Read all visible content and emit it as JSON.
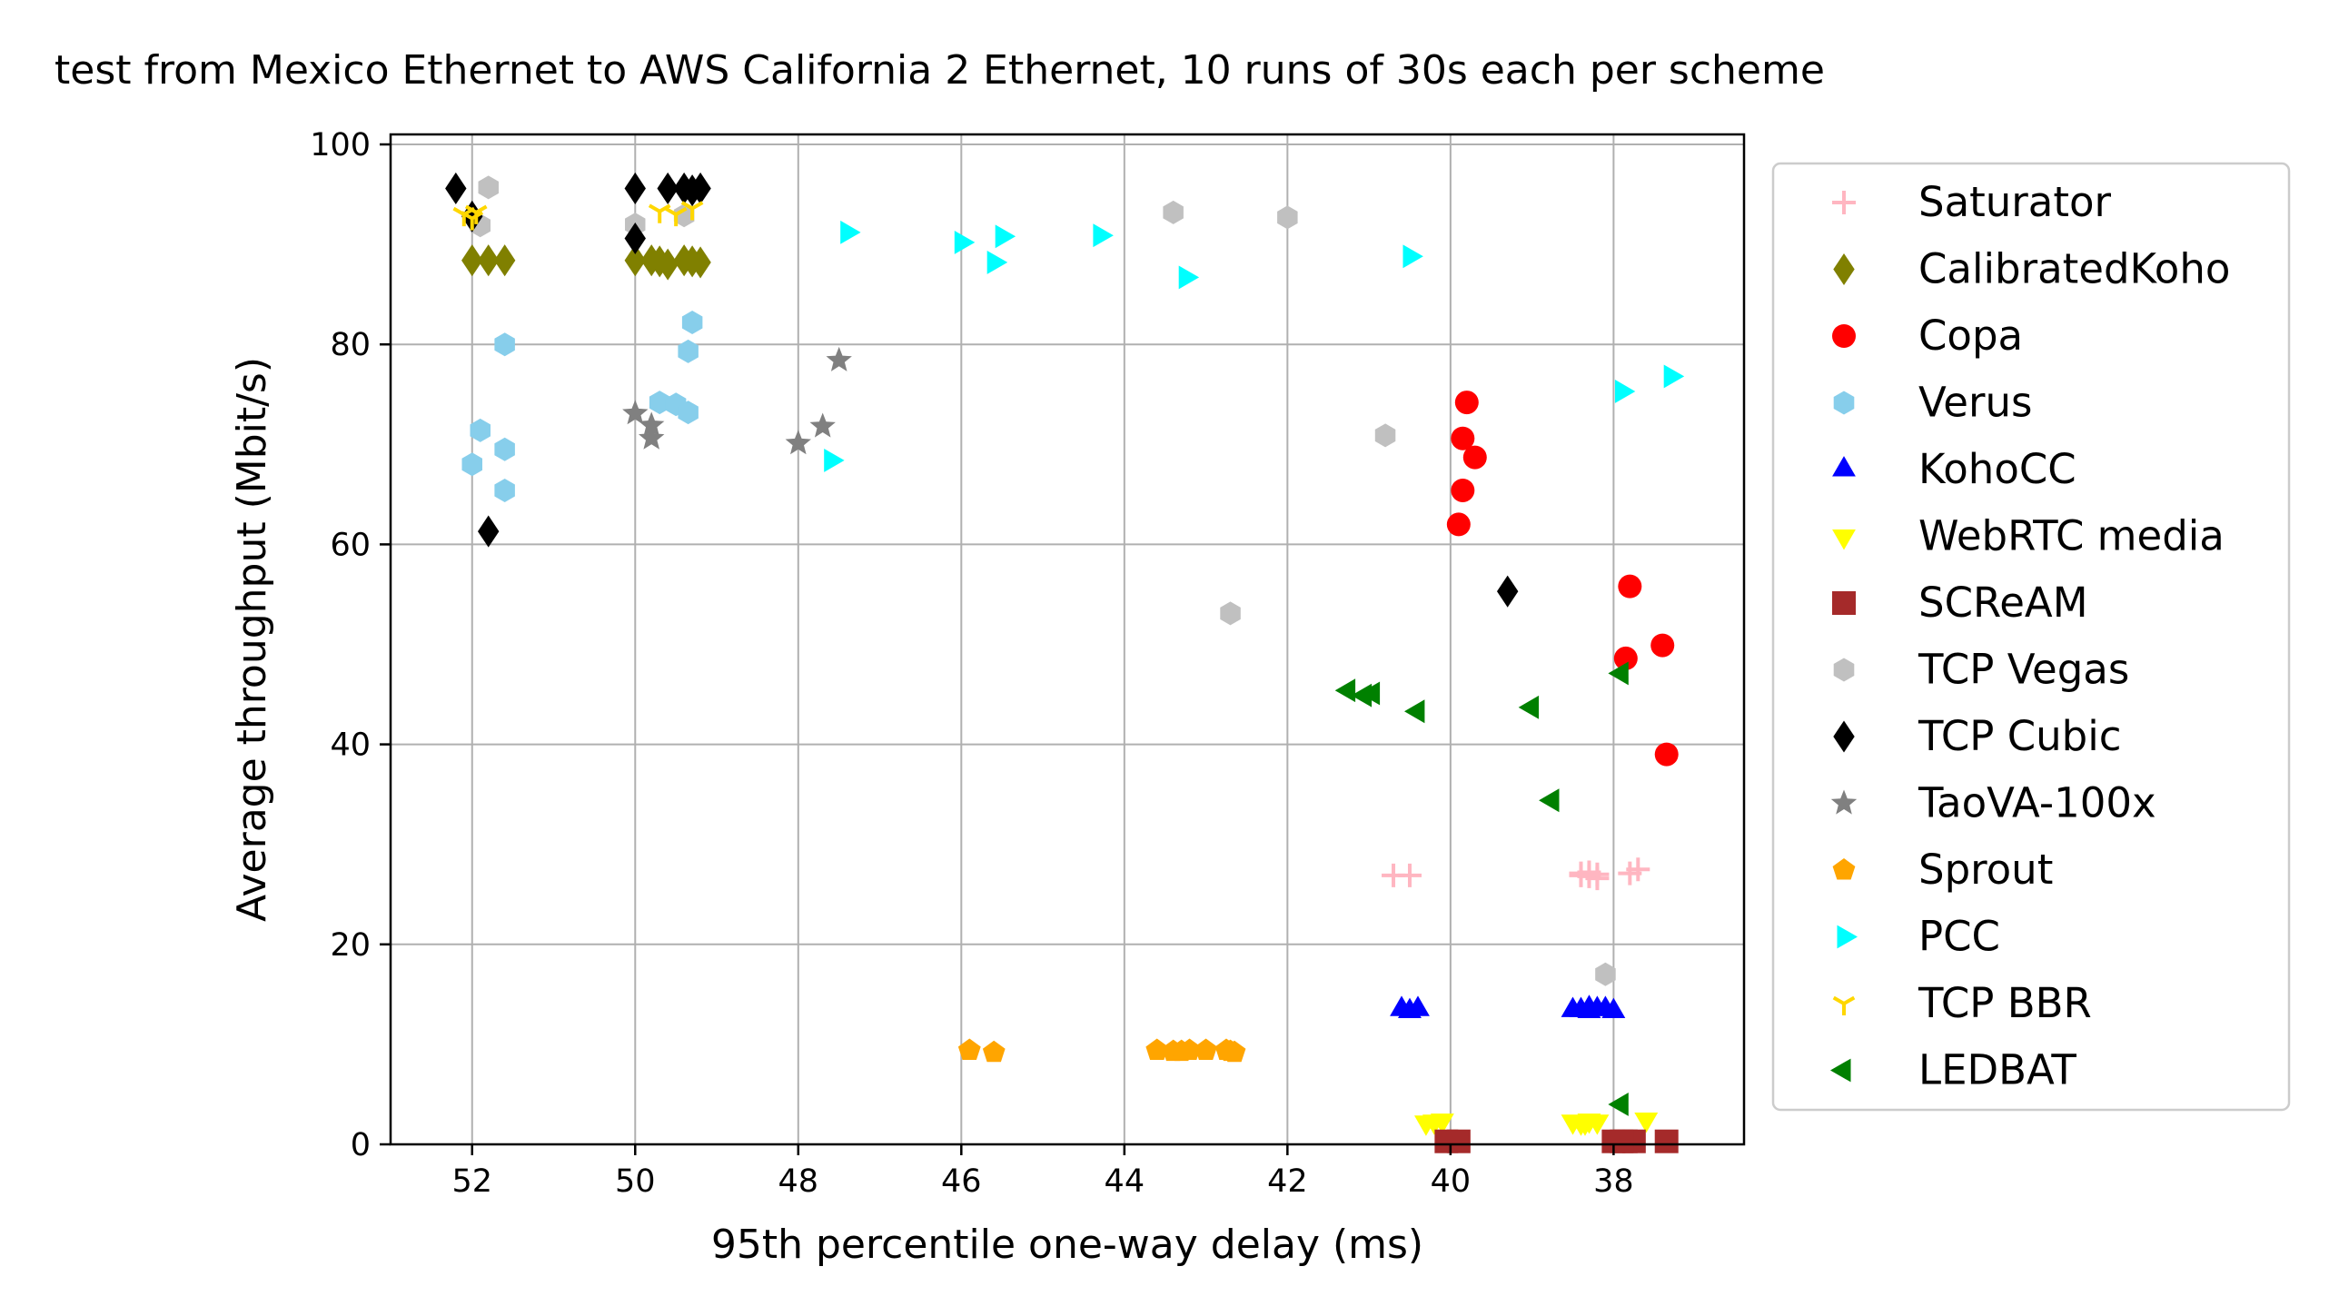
{
  "chart_data": {
    "type": "scatter",
    "title": "test from Mexico Ethernet to AWS California 2 Ethernet, 10 runs of 30s each per scheme",
    "xlabel": "95th percentile one-way delay (ms)",
    "ylabel": "Average throughput (Mbit/s)",
    "xlim": [
      53.0,
      36.4
    ],
    "ylim": [
      0,
      101
    ],
    "x_inverted": true,
    "grid": true,
    "legend_position": "outside-right",
    "xticks": [
      52,
      50,
      48,
      46,
      44,
      42,
      40,
      38
    ],
    "yticks": [
      0,
      20,
      40,
      60,
      80,
      100
    ],
    "series": [
      {
        "name": "Saturator",
        "marker": "plus",
        "color": "#ffb6c1",
        "points": [
          [
            40.7,
            26.9
          ],
          [
            40.5,
            26.9
          ],
          [
            38.4,
            27.1
          ],
          [
            38.3,
            26.8
          ],
          [
            38.2,
            26.6
          ],
          [
            38.3,
            27.2
          ],
          [
            38.2,
            27.0
          ],
          [
            37.8,
            27.1
          ],
          [
            37.7,
            27.5
          ],
          [
            38.4,
            26.9
          ]
        ]
      },
      {
        "name": "CalibratedKoho",
        "marker": "diamond",
        "color": "#808000",
        "points": [
          [
            52.0,
            88.4
          ],
          [
            51.8,
            88.4
          ],
          [
            51.6,
            88.4
          ],
          [
            50.0,
            88.4
          ],
          [
            49.8,
            88.4
          ],
          [
            49.6,
            88.0
          ],
          [
            49.4,
            88.4
          ],
          [
            49.2,
            88.2
          ],
          [
            49.7,
            88.3
          ],
          [
            49.3,
            88.3
          ]
        ]
      },
      {
        "name": "Copa",
        "marker": "circle",
        "color": "#ff0000",
        "points": [
          [
            39.8,
            74.2
          ],
          [
            39.85,
            70.6
          ],
          [
            39.85,
            65.4
          ],
          [
            39.7,
            68.7
          ],
          [
            39.9,
            62.0
          ],
          [
            37.8,
            55.8
          ],
          [
            37.4,
            49.9
          ],
          [
            37.85,
            48.6
          ],
          [
            37.35,
            39.0
          ]
        ]
      },
      {
        "name": "Verus",
        "marker": "hexagon",
        "color": "#87ceeb",
        "points": [
          [
            51.6,
            80.0
          ],
          [
            51.9,
            71.4
          ],
          [
            51.6,
            69.5
          ],
          [
            52.0,
            68.0
          ],
          [
            51.6,
            65.4
          ],
          [
            49.3,
            82.2
          ],
          [
            49.35,
            79.3
          ],
          [
            49.7,
            74.2
          ],
          [
            49.5,
            74.0
          ],
          [
            49.35,
            73.2
          ]
        ]
      },
      {
        "name": "KohoCC",
        "marker": "triangle-up",
        "color": "#0000ff",
        "points": [
          [
            40.6,
            13.5
          ],
          [
            40.4,
            13.5
          ],
          [
            40.5,
            13.3
          ],
          [
            38.5,
            13.4
          ],
          [
            38.4,
            13.4
          ],
          [
            38.3,
            13.6
          ],
          [
            38.2,
            13.5
          ],
          [
            38.1,
            13.5
          ],
          [
            38.3,
            13.3
          ],
          [
            38.0,
            13.3
          ]
        ]
      },
      {
        "name": "WebRTC media",
        "marker": "triangle-down",
        "color": "#ffff00",
        "points": [
          [
            40.3,
            2.2
          ],
          [
            40.2,
            2.3
          ],
          [
            40.1,
            2.4
          ],
          [
            38.5,
            2.3
          ],
          [
            38.4,
            2.2
          ],
          [
            38.3,
            2.4
          ],
          [
            38.2,
            2.3
          ],
          [
            37.6,
            2.5
          ],
          [
            38.35,
            2.2
          ]
        ]
      },
      {
        "name": "SCReAM",
        "marker": "square",
        "color": "#a52a2a",
        "points": [
          [
            40.05,
            0.3
          ],
          [
            39.9,
            0.3
          ],
          [
            38.0,
            0.3
          ],
          [
            37.85,
            0.3
          ],
          [
            37.75,
            0.3
          ],
          [
            37.35,
            0.3
          ],
          [
            37.9,
            0.3
          ]
        ]
      },
      {
        "name": "TCP Vegas",
        "marker": "hexagon",
        "color": "#c0c0c0",
        "points": [
          [
            51.8,
            95.7
          ],
          [
            51.9,
            91.9
          ],
          [
            50.0,
            92.0
          ],
          [
            49.4,
            92.9
          ],
          [
            43.4,
            93.2
          ],
          [
            42.0,
            92.7
          ],
          [
            40.8,
            70.9
          ],
          [
            42.7,
            53.1
          ],
          [
            38.1,
            17.0
          ]
        ]
      },
      {
        "name": "TCP Cubic",
        "marker": "diamond",
        "color": "#000000",
        "points": [
          [
            52.2,
            95.6
          ],
          [
            52.0,
            92.8
          ],
          [
            51.8,
            61.3
          ],
          [
            50.0,
            95.6
          ],
          [
            50.0,
            90.6
          ],
          [
            49.6,
            95.6
          ],
          [
            49.4,
            95.6
          ],
          [
            49.2,
            95.6
          ],
          [
            49.3,
            95.4
          ],
          [
            39.3,
            55.3
          ]
        ]
      },
      {
        "name": "TaoVA-100x",
        "marker": "star",
        "color": "#808080",
        "points": [
          [
            47.5,
            78.4
          ],
          [
            50.0,
            73.1
          ],
          [
            49.8,
            71.9
          ],
          [
            49.8,
            70.6
          ],
          [
            48.0,
            70.1
          ],
          [
            47.7,
            71.8
          ]
        ]
      },
      {
        "name": "Sprout",
        "marker": "pentagon",
        "color": "#ffa500",
        "points": [
          [
            45.9,
            9.4
          ],
          [
            45.6,
            9.2
          ],
          [
            43.6,
            9.4
          ],
          [
            43.4,
            9.3
          ],
          [
            43.2,
            9.4
          ],
          [
            43.0,
            9.4
          ],
          [
            42.75,
            9.4
          ],
          [
            42.65,
            9.2
          ],
          [
            43.3,
            9.3
          ],
          [
            42.7,
            9.3
          ]
        ]
      },
      {
        "name": "PCC",
        "marker": "triangle-right",
        "color": "#00ffff",
        "points": [
          [
            47.4,
            91.2
          ],
          [
            46.0,
            90.2
          ],
          [
            45.5,
            90.8
          ],
          [
            45.6,
            88.2
          ],
          [
            44.3,
            90.9
          ],
          [
            43.25,
            86.7
          ],
          [
            40.5,
            88.8
          ],
          [
            47.6,
            68.4
          ],
          [
            37.9,
            75.3
          ],
          [
            37.3,
            76.8
          ]
        ]
      },
      {
        "name": "TCP BBR",
        "marker": "tri-down",
        "color": "#ffd700",
        "points": [
          [
            52.1,
            93.0
          ],
          [
            52.0,
            92.6
          ],
          [
            51.95,
            93.2
          ],
          [
            49.7,
            93.3
          ],
          [
            49.5,
            93.0
          ],
          [
            49.3,
            93.6
          ]
        ]
      },
      {
        "name": "LEDBAT",
        "marker": "triangle-left",
        "color": "#008000",
        "points": [
          [
            41.25,
            45.4
          ],
          [
            41.05,
            44.9
          ],
          [
            40.95,
            45.1
          ],
          [
            40.4,
            43.3
          ],
          [
            39.0,
            43.7
          ],
          [
            37.9,
            47.1
          ],
          [
            38.75,
            34.4
          ],
          [
            37.9,
            4.0
          ]
        ]
      }
    ]
  }
}
